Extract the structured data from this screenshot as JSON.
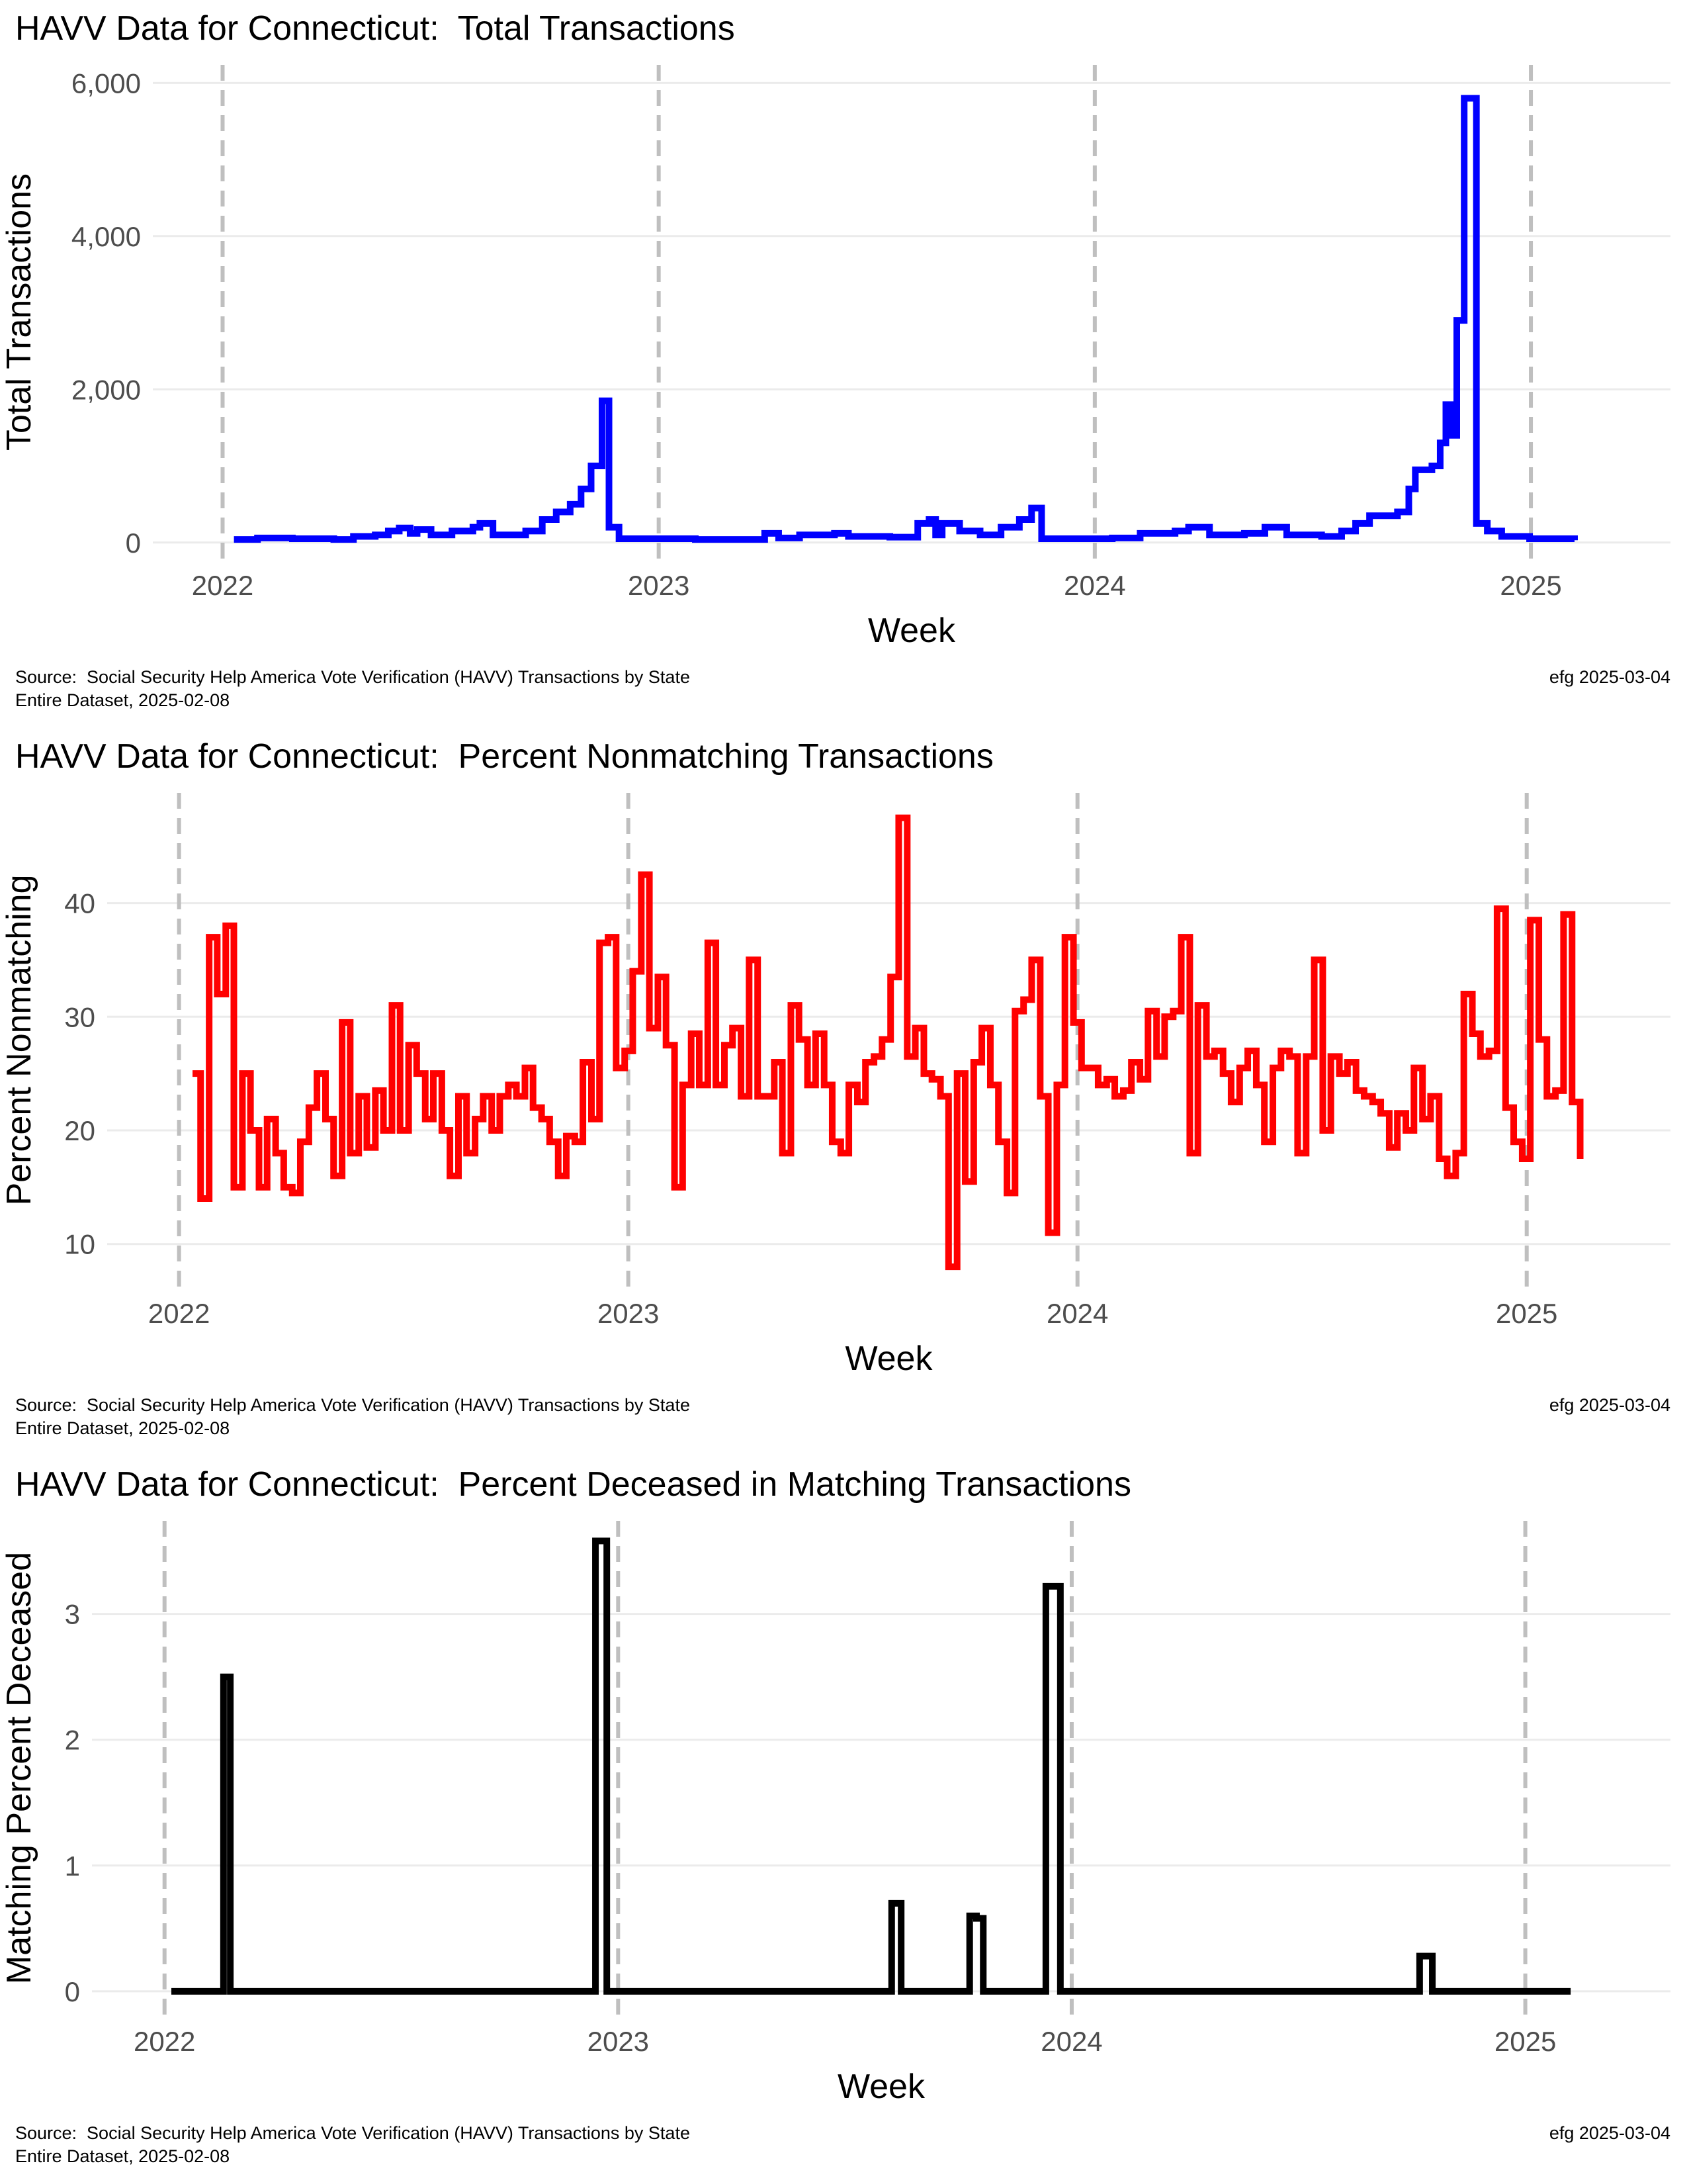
{
  "chart_data": [
    {
      "type": "line",
      "line_style": "step",
      "title": "HAVV Data for Connecticut:  Total Transactions",
      "x_label": "Week",
      "y_label": "Total Transactions",
      "caption": [
        "Source:  Social Security Help America Vote Verification (HAVV) Transactions by State",
        "Entire Dataset, 2025-02-08"
      ],
      "credit": "efg 2025-03-04",
      "xlim": [
        2021.84,
        2025.32
      ],
      "xticks": [
        2022,
        2023,
        2024,
        2025
      ],
      "ylim": [
        -218,
        6236
      ],
      "yticks": [
        0,
        {
          "value": 2000,
          "label": "2,000"
        },
        {
          "value": 4000,
          "label": "4,000"
        },
        {
          "value": 6000,
          "label": "6,000"
        }
      ],
      "grid": true,
      "xgrid_style": "dashed",
      "x": [
        2022.026,
        2022.08,
        2022.16,
        2022.255,
        2022.3,
        2022.35,
        2022.38,
        2022.405,
        2022.43,
        2022.446,
        2022.478,
        2022.526,
        2022.574,
        2022.59,
        2022.62,
        2022.695,
        2022.733,
        2022.765,
        2022.797,
        2022.822,
        2022.845,
        2022.87,
        2022.886,
        2022.909,
        2023.084,
        2023.243,
        2023.275,
        2023.323,
        2023.403,
        2023.435,
        2023.53,
        2023.594,
        2023.62,
        2023.635,
        2023.65,
        2023.69,
        2023.737,
        2023.785,
        2023.827,
        2023.855,
        2023.878,
        2024.04,
        2024.104,
        2024.184,
        2024.215,
        2024.263,
        2024.343,
        2024.39,
        2024.44,
        2024.52,
        2024.566,
        2024.598,
        2024.63,
        2024.694,
        2024.72,
        2024.735,
        2024.773,
        2024.792,
        2024.805,
        2024.82,
        2024.83,
        2024.847,
        2024.875,
        2024.9,
        2024.933,
        2024.997,
        2025.1
      ],
      "series": [
        {
          "name": "Total Transactions",
          "color": "#0000ff",
          "values": [
            40,
            60,
            50,
            40,
            80,
            100,
            150,
            190,
            120,
            170,
            100,
            150,
            200,
            250,
            100,
            150,
            300,
            400,
            500,
            700,
            1000,
            1850,
            200,
            50,
            40,
            120,
            60,
            100,
            120,
            80,
            70,
            250,
            300,
            100,
            250,
            150,
            100,
            200,
            300,
            450,
            50,
            60,
            120,
            150,
            200,
            100,
            120,
            200,
            100,
            80,
            150,
            250,
            350,
            400,
            700,
            950,
            1000,
            1300,
            1800,
            1400,
            2900,
            5800,
            250,
            150,
            80,
            50,
            30
          ]
        }
      ]
    },
    {
      "type": "line",
      "line_style": "step",
      "title": "HAVV Data for Connecticut:  Percent Nonmatching Transactions",
      "x_label": "Week",
      "y_label": "Percent Nonmatching",
      "caption": [
        "Source:  Social Security Help America Vote Verification (HAVV) Transactions by State",
        "Entire Dataset, 2025-02-08"
      ],
      "credit": "efg 2025-03-04",
      "xlim": [
        2021.84,
        2025.32
      ],
      "xticks": [
        2022,
        2023,
        2024,
        2025
      ],
      "ylim": [
        6.2,
        49.7
      ],
      "yticks": [
        10,
        20,
        30,
        40
      ],
      "grid": true,
      "xgrid_style": "dashed",
      "x": [
        2022.03,
        2022.048,
        2022.067,
        2022.085,
        2022.104,
        2022.122,
        2022.141,
        2022.159,
        2022.178,
        2022.196,
        2022.215,
        2022.233,
        2022.252,
        2022.27,
        2022.289,
        2022.307,
        2022.326,
        2022.344,
        2022.363,
        2022.381,
        2022.4,
        2022.418,
        2022.437,
        2022.455,
        2022.474,
        2022.492,
        2022.511,
        2022.529,
        2022.548,
        2022.566,
        2022.585,
        2022.603,
        2022.622,
        2022.64,
        2022.659,
        2022.677,
        2022.696,
        2022.714,
        2022.733,
        2022.751,
        2022.77,
        2022.788,
        2022.807,
        2022.825,
        2022.844,
        2022.862,
        2022.881,
        2022.899,
        2022.918,
        2022.936,
        2022.955,
        2022.973,
        2022.992,
        2023.01,
        2023.029,
        2023.047,
        2023.066,
        2023.084,
        2023.103,
        2023.121,
        2023.14,
        2023.158,
        2023.177,
        2023.195,
        2023.214,
        2023.232,
        2023.251,
        2023.269,
        2023.288,
        2023.306,
        2023.325,
        2023.343,
        2023.362,
        2023.38,
        2023.399,
        2023.417,
        2023.436,
        2023.454,
        2023.473,
        2023.491,
        2023.51,
        2023.528,
        2023.547,
        2023.565,
        2023.584,
        2023.602,
        2023.621,
        2023.639,
        2023.658,
        2023.676,
        2023.695,
        2023.713,
        2023.732,
        2023.75,
        2023.769,
        2023.787,
        2023.806,
        2023.824,
        2023.843,
        2023.861,
        2023.88,
        2023.898,
        2023.917,
        2023.935,
        2023.954,
        2023.972,
        2023.991,
        2024.009,
        2024.028,
        2024.046,
        2024.065,
        2024.083,
        2024.102,
        2024.12,
        2024.139,
        2024.157,
        2024.176,
        2024.194,
        2024.213,
        2024.231,
        2024.25,
        2024.268,
        2024.287,
        2024.305,
        2024.324,
        2024.342,
        2024.361,
        2024.379,
        2024.398,
        2024.416,
        2024.435,
        2024.453,
        2024.472,
        2024.49,
        2024.509,
        2024.527,
        2024.546,
        2024.564,
        2024.583,
        2024.601,
        2024.62,
        2024.638,
        2024.657,
        2024.675,
        2024.694,
        2024.712,
        2024.731,
        2024.749,
        2024.768,
        2024.786,
        2024.805,
        2024.823,
        2024.842,
        2024.86,
        2024.879,
        2024.897,
        2024.916,
        2024.934,
        2024.953,
        2024.971,
        2024.99,
        2025.008,
        2025.027,
        2025.045,
        2025.064,
        2025.082,
        2025.101,
        2025.119
      ],
      "series": [
        {
          "name": "Percent Nonmatching",
          "color": "#ff0000",
          "values": [
            25,
            14,
            37,
            32,
            38,
            15,
            25,
            20,
            15,
            21,
            18,
            15,
            14.5,
            19,
            22,
            25,
            21,
            16,
            29.5,
            18,
            23,
            18.5,
            23.5,
            20,
            31,
            20,
            27.5,
            25,
            21,
            25,
            20,
            16,
            23,
            18,
            21,
            23,
            20,
            23,
            24,
            23,
            25.5,
            22,
            21,
            19,
            16,
            19.5,
            19,
            26,
            21,
            36.5,
            37,
            25.5,
            27,
            34,
            42.5,
            29,
            33.5,
            27.5,
            15,
            24,
            28.5,
            24,
            36.5,
            24,
            27.5,
            29,
            23,
            35,
            23,
            23,
            26,
            18,
            31,
            28,
            24,
            28.5,
            24,
            19,
            18,
            24,
            22.5,
            26,
            26.5,
            28,
            33.5,
            47.5,
            26.5,
            29,
            25,
            24.5,
            23,
            8,
            25,
            15.5,
            26,
            29,
            24,
            19,
            14.5,
            30.5,
            31.5,
            35,
            23,
            11,
            24,
            37,
            29.5,
            25.5,
            25.5,
            24,
            24.5,
            23,
            23.5,
            26,
            24.5,
            30.5,
            26.5,
            30,
            30.5,
            37,
            18,
            31,
            26.5,
            27,
            25,
            22.5,
            25.5,
            27,
            24,
            19,
            25.5,
            27,
            26.5,
            18,
            26.5,
            35,
            20,
            26.5,
            25,
            26,
            23.5,
            23,
            22.5,
            21.5,
            18.5,
            21.5,
            20,
            25.5,
            21,
            23,
            17.5,
            16,
            18,
            32,
            28.5,
            26.5,
            27,
            39.5,
            22,
            19,
            17.5,
            38.5,
            28,
            23,
            23.5,
            39,
            22.5,
            17.5
          ]
        }
      ]
    },
    {
      "type": "line",
      "line_style": "step",
      "title": "HAVV Data for Connecticut:  Percent Deceased in Matching Transactions",
      "x_label": "Week",
      "y_label": "Matching Percent Deceased",
      "caption": [
        "Source:  Social Security Help America Vote Verification (HAVV) Transactions by State",
        "Entire Dataset, 2025-02-08"
      ],
      "credit": "efg 2025-03-04",
      "xlim": [
        2021.84,
        2025.32
      ],
      "xticks": [
        2022,
        2023,
        2024,
        2025
      ],
      "ylim": [
        -0.19,
        3.74
      ],
      "yticks": [
        0,
        1,
        2,
        3
      ],
      "grid": true,
      "xgrid_style": "dashed",
      "x": [
        2022.015,
        2022.13,
        2022.145,
        2022.95,
        2022.975,
        2023.603,
        2023.624,
        2023.775,
        2023.79,
        2023.805,
        2023.943,
        2023.975,
        2024.767,
        2024.795,
        2025.1
      ],
      "series": [
        {
          "name": "Matching Percent Deceased",
          "color": "#000000",
          "values": [
            0,
            2.5,
            0,
            3.58,
            0,
            0.7,
            0,
            0.6,
            0.58,
            0,
            3.22,
            0,
            0.28,
            0,
            0
          ]
        }
      ]
    }
  ]
}
